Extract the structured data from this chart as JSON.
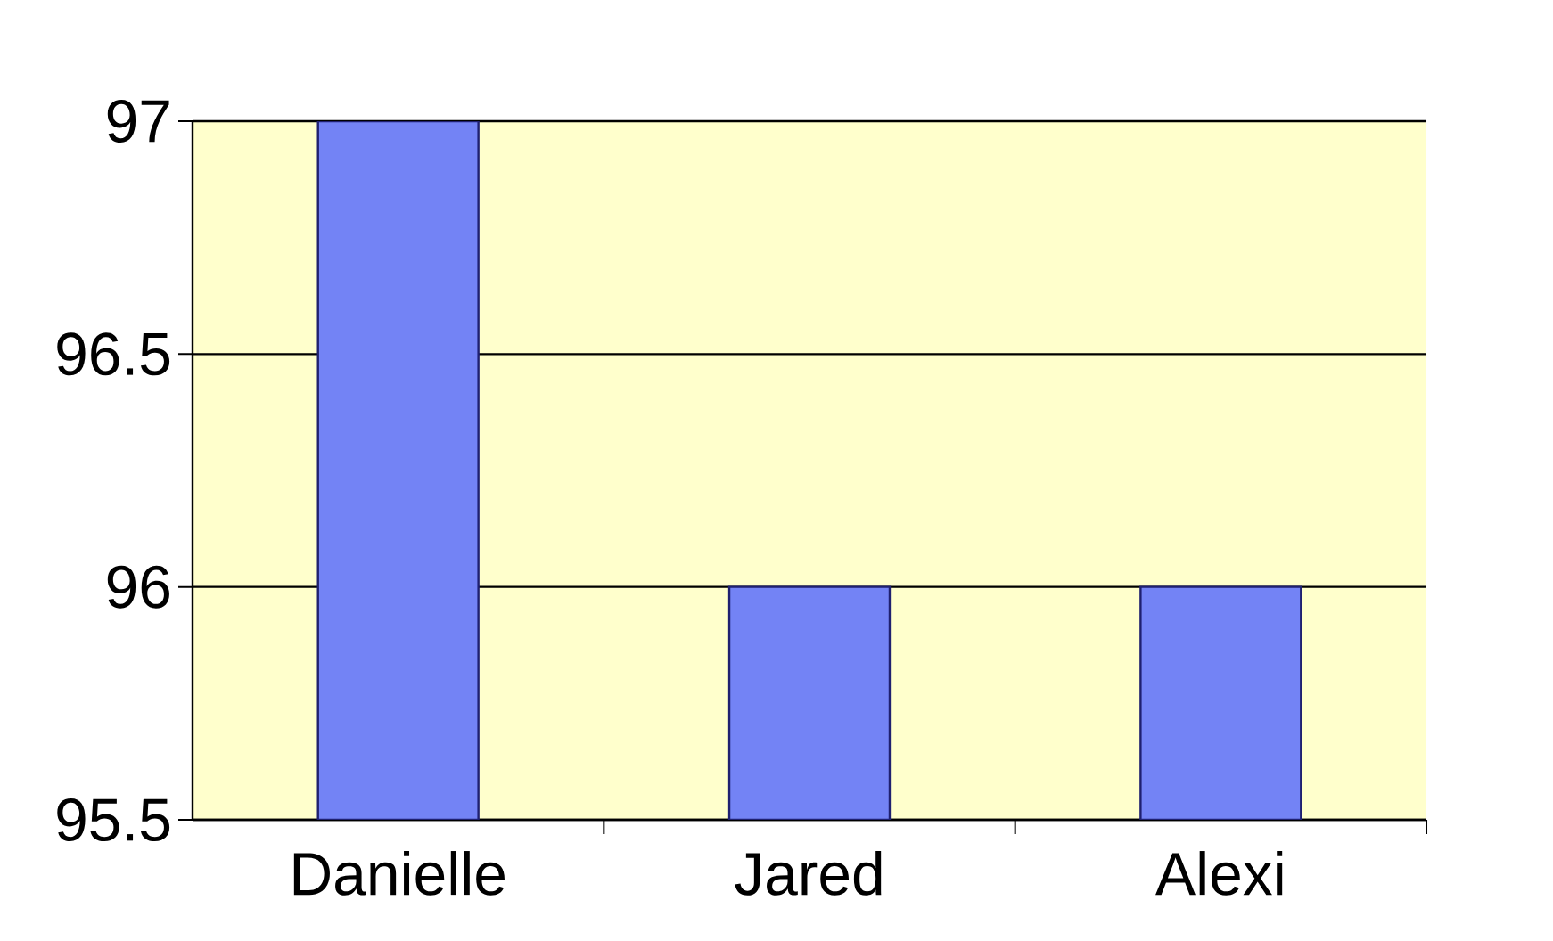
{
  "chart_data": {
    "type": "bar",
    "categories": [
      "Danielle",
      "Jared",
      "Alexi"
    ],
    "values": [
      97,
      96,
      96
    ],
    "color": "#7383f5",
    "ylim": [
      95.5,
      97
    ],
    "yticks": [
      95.5,
      96,
      96.5,
      97
    ],
    "grid": "y"
  }
}
